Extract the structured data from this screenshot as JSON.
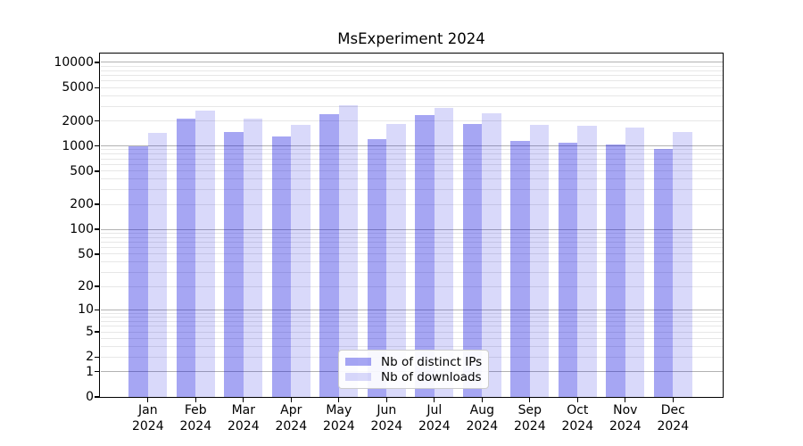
{
  "chart_data": {
    "type": "bar",
    "title": "MsExperiment 2024",
    "categories": [
      "Jan",
      "Feb",
      "Mar",
      "Apr",
      "May",
      "Jun",
      "Jul",
      "Aug",
      "Sep",
      "Oct",
      "Nov",
      "Dec"
    ],
    "year_label": "2024",
    "series": [
      {
        "name": "Nb of distinct IPs",
        "color": "#0000dc",
        "alpha": 0.35,
        "display_fill": "#a6a6f3",
        "values": [
          985,
          2110,
          1460,
          1310,
          2400,
          1210,
          2330,
          1830,
          1150,
          1100,
          1050,
          930
        ]
      },
      {
        "name": "Nb of downloads",
        "color": "#0000dc",
        "alpha": 0.15,
        "display_fill": "#d9d9fa",
        "values": [
          1450,
          2640,
          2110,
          1805,
          3100,
          1820,
          2860,
          2450,
          1800,
          1750,
          1680,
          1460
        ]
      }
    ],
    "y_axis": {
      "ticks": [
        0,
        1,
        2,
        5,
        10,
        20,
        50,
        100,
        200,
        500,
        1000,
        2000,
        5000,
        10000
      ],
      "scale": "symlog (position proportional to log10(value+1))",
      "range_top": 12700
    },
    "xlabel": "",
    "ylabel": "",
    "grid": "horizontal major and minor gridlines",
    "legend_position": "bottom-center"
  }
}
